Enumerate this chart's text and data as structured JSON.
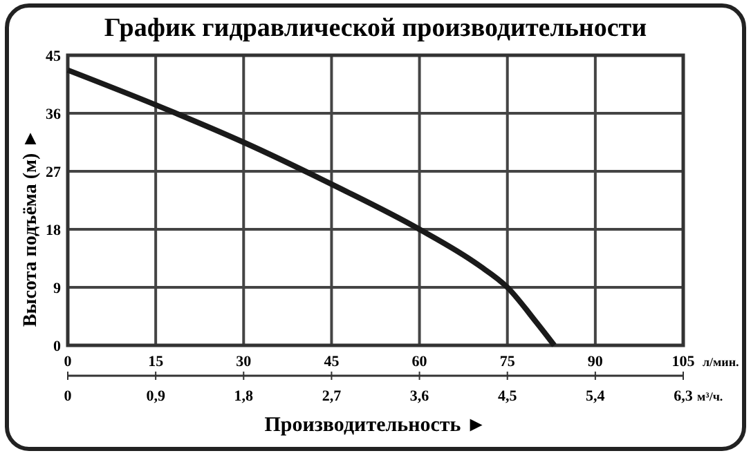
{
  "chart_data": {
    "type": "line",
    "title": "График гидравлической производительности",
    "xlabel": "Производительность ►",
    "ylabel": "Высота подъёма (м) ►",
    "annotations": [
      "л/мин.",
      "м³/ч."
    ],
    "x": [
      0,
      15,
      30,
      45,
      60,
      70,
      75,
      80,
      83
    ],
    "series": [
      {
        "color": "#1a1a1a",
        "values": [
          42.7,
          37.3,
          31.5,
          25,
          18,
          12.5,
          9,
          3.5,
          0
        ]
      }
    ],
    "xlim": [
      0,
      105
    ],
    "xticks": [
      0,
      15,
      30,
      45,
      60,
      75,
      90,
      105
    ],
    "x2lim": [
      0,
      6.3
    ],
    "x2ticks": [
      0,
      {
        "value": 0.9,
        "label": "0,9"
      },
      {
        "value": 1.8,
        "label": "1,8"
      },
      {
        "value": 2.7,
        "label": "2,7"
      },
      {
        "value": 3.6,
        "label": "3,6"
      },
      {
        "value": 4.5,
        "label": "4,5"
      },
      {
        "value": 5.4,
        "label": "5,4"
      },
      {
        "value": 6.3,
        "label": "6,3"
      }
    ],
    "ylim": [
      0,
      45
    ],
    "yticks": [
      0,
      9,
      18,
      27,
      36,
      45
    ],
    "grid": true,
    "marker": "none",
    "line_style": "solid"
  }
}
